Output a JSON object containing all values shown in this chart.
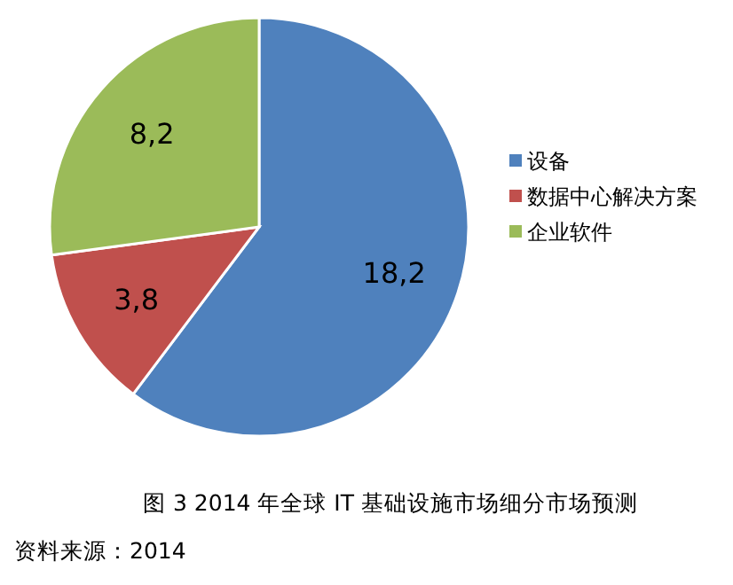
{
  "chart_data": {
    "type": "pie",
    "categories": [
      "设备",
      "数据中心解决方案",
      "企业软件"
    ],
    "values": [
      18.2,
      3.8,
      8.2
    ],
    "colors": [
      "#4f81bd",
      "#c0504d",
      "#9bbb59"
    ],
    "value_labels": [
      "18,2",
      "3,8",
      "8,2"
    ],
    "legend": "right",
    "annotations": [
      "图 3 2014 年全球 IT 基础设施市场细分市场预测",
      "资料来源：2014"
    ]
  }
}
